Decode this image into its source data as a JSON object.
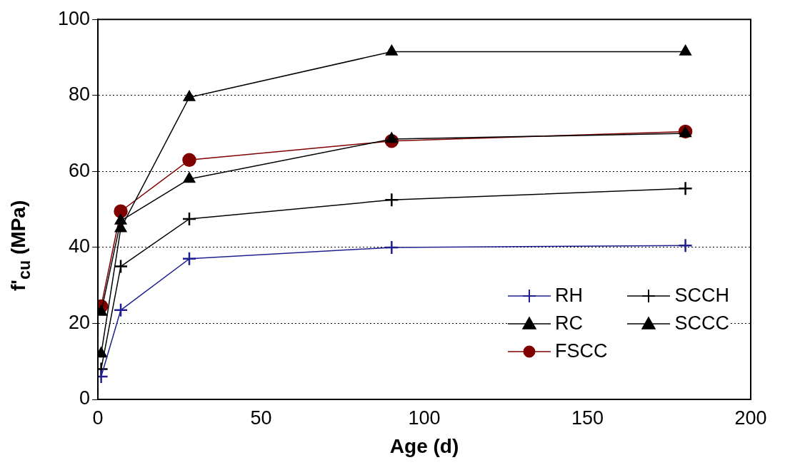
{
  "chart_data": {
    "type": "line",
    "xlabel": "Age (d)",
    "ylabel": "f'$_{cu}$ (MPa)",
    "x": [
      1,
      7,
      28,
      90,
      180
    ],
    "series": [
      {
        "name": "RH",
        "color": "#1f1f8f",
        "marker": "cross",
        "values": [
          6,
          23.5,
          37,
          40,
          40.5
        ]
      },
      {
        "name": "SCCH",
        "color": "#000000",
        "marker": "cross",
        "values": [
          8,
          35,
          47.5,
          52.5,
          55.5
        ]
      },
      {
        "name": "RC",
        "color": "#000000",
        "marker": "triangle",
        "values": [
          23,
          47,
          58,
          68.5,
          70
        ]
      },
      {
        "name": "SCCC",
        "color": "#000000",
        "marker": "triangle",
        "values": [
          12,
          45,
          79.5,
          91.5,
          91.5
        ]
      },
      {
        "name": "FSCC",
        "color": "#800000",
        "marker": "circle",
        "values": [
          24.5,
          49.5,
          63,
          68,
          70.5
        ]
      }
    ],
    "xlim": [
      0,
      200
    ],
    "xticks": [
      0,
      50,
      100,
      150,
      200
    ],
    "ylim": [
      0,
      100
    ],
    "yticks": [
      0,
      20,
      40,
      60,
      80,
      100
    ],
    "grid": "y",
    "legend": "bottom right",
    "line_style": "solid"
  }
}
